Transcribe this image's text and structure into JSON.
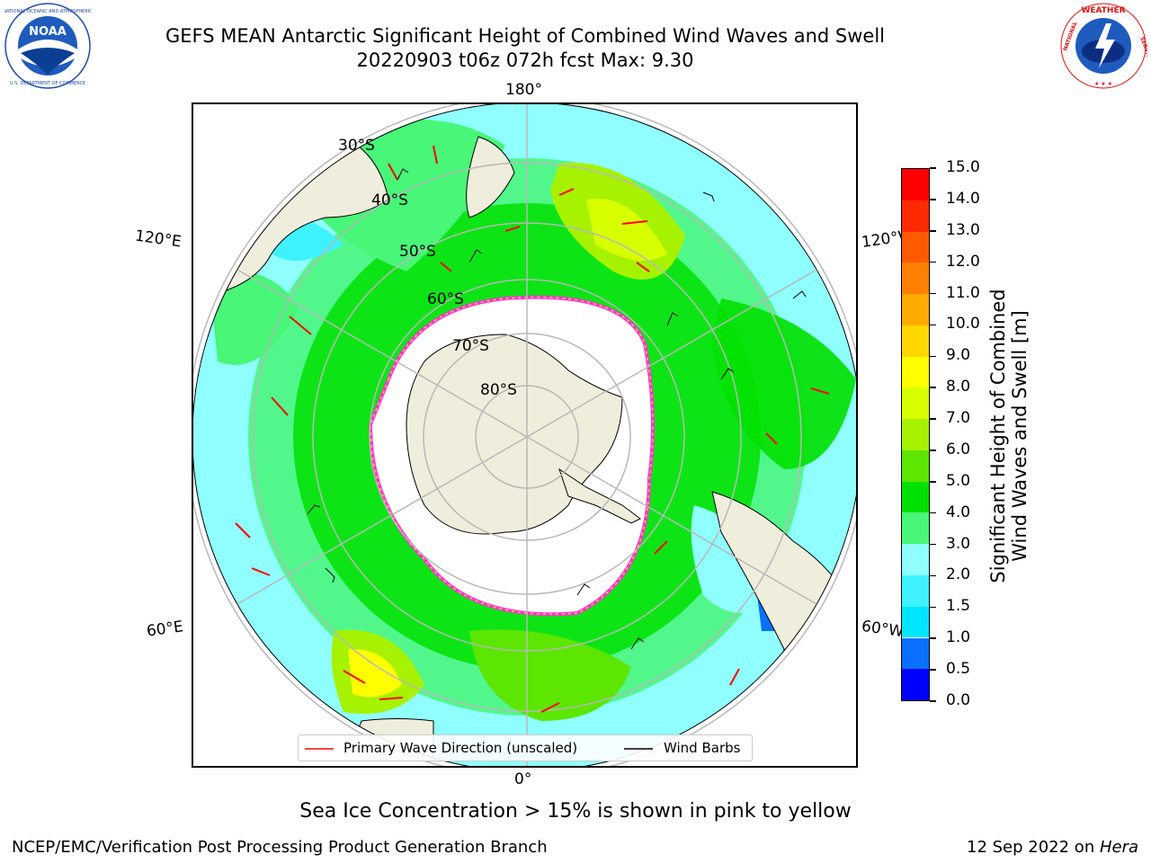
{
  "header": {
    "title_line1": "GEFS MEAN Antarctic Significant Height of Combined Wind Waves and Swell",
    "title_line2": "20220903 t06z 072h fcst   Max: 9.30"
  },
  "logos": {
    "left": {
      "name": "NOAA",
      "ring_text": "NATIONAL OCEANIC AND ATMOSPHERIC ADMINISTRATION · U.S. DEPARTMENT OF COMMERCE"
    },
    "right": {
      "name": "NATIONAL WEATHER SERVICE"
    }
  },
  "map": {
    "longitude_labels": {
      "top": "180°",
      "bottom": "0°",
      "upper_left": "120°E",
      "upper_right": "120°W",
      "lower_left": "60°E",
      "lower_right": "60°W"
    },
    "latitude_labels": [
      "30°S",
      "40°S",
      "50°S",
      "60°S",
      "70°S",
      "80°S"
    ],
    "colors": {
      "land": "#efeedc",
      "ice_edge": "#ff33cc",
      "wave_arrow": "#ff0000",
      "wind_barb": "#000000"
    }
  },
  "legend": {
    "wave_direction": "Primary Wave Direction (unscaled)",
    "wind_barbs": "Wind Barbs"
  },
  "colorbar": {
    "title_line1": "Significant Height of Combined",
    "title_line2": "Wind Waves and Swell [m]",
    "ticks": [
      "0.0",
      "0.5",
      "1.0",
      "1.5",
      "2.0",
      "3.0",
      "4.0",
      "5.0",
      "6.0",
      "7.0",
      "8.0",
      "9.0",
      "10.0",
      "11.0",
      "12.0",
      "13.0",
      "14.0",
      "15.0"
    ],
    "colors": [
      "#0000ff",
      "#0a70ff",
      "#00e6ff",
      "#3ff2ff",
      "#90ffff",
      "#48f678",
      "#00e000",
      "#5ce600",
      "#a6f200",
      "#d8ff00",
      "#ffff00",
      "#ffd700",
      "#ffaa00",
      "#ff8000",
      "#ff5a00",
      "#ff2a00",
      "#ff0000"
    ]
  },
  "note": "Sea Ice Concentration > 15% is shown in pink to yellow",
  "footer": {
    "left": "NCEP/EMC/Verification Post Processing Product Generation Branch",
    "right_date": "12 Sep 2022 on ",
    "right_host": "Hera"
  }
}
